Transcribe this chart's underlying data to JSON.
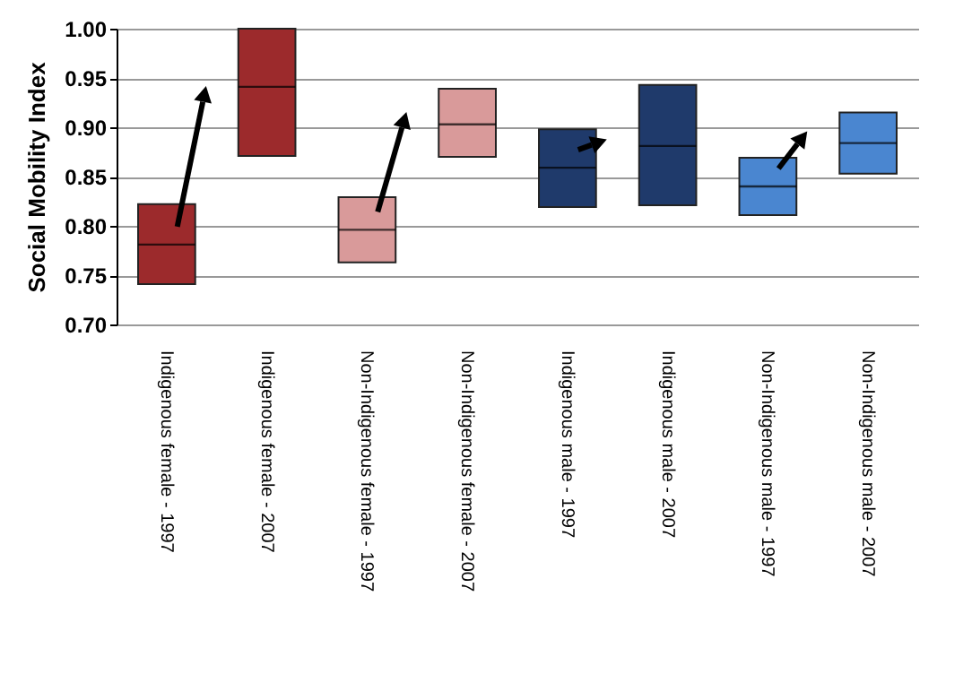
{
  "chart_data": {
    "type": "box",
    "ylabel": "Social Mobility Index",
    "categories": [
      "Indigenous female - 1997",
      "Indigenous female - 2007",
      "Non-Indigenous female - 1997",
      "Non-Indigenous female - 2007",
      "Indigenous male - 1997",
      "Indigenous male - 2007",
      "Non-Indigenous male - 1997",
      "Non-Indigenous male - 2007"
    ],
    "colors": [
      "#9c2a2c",
      "#9c2a2c",
      "#d99a9a",
      "#d99a9a",
      "#1f3a6b",
      "#1f3a6b",
      "#4a86d0",
      "#4a86d0"
    ],
    "boxes": [
      {
        "low": 0.741,
        "q1": 0.741,
        "median": 0.781,
        "q3": 0.822,
        "high": 0.822
      },
      {
        "low": 0.871,
        "q1": 0.871,
        "median": 0.941,
        "q3": 1.0,
        "high": 1.0
      },
      {
        "low": 0.763,
        "q1": 0.763,
        "median": 0.796,
        "q3": 0.829,
        "high": 0.829
      },
      {
        "low": 0.87,
        "q1": 0.87,
        "median": 0.903,
        "q3": 0.939,
        "high": 0.939
      },
      {
        "low": 0.819,
        "q1": 0.819,
        "median": 0.859,
        "q3": 0.898,
        "high": 0.898
      },
      {
        "low": 0.821,
        "q1": 0.821,
        "median": 0.881,
        "q3": 0.943,
        "high": 0.943
      },
      {
        "low": 0.811,
        "q1": 0.811,
        "median": 0.84,
        "q3": 0.869,
        "high": 0.869
      },
      {
        "low": 0.853,
        "q1": 0.853,
        "median": 0.884,
        "q3": 0.915,
        "high": 0.915
      }
    ],
    "ylim": [
      0.7,
      1.0
    ],
    "yticks": [
      {
        "value": 0.7,
        "label": "0.70"
      },
      {
        "value": 0.75,
        "label": "0.75"
      },
      {
        "value": 0.8,
        "label": "0.80"
      },
      {
        "value": 0.85,
        "label": "0.85"
      },
      {
        "value": 0.9,
        "label": "0.90"
      },
      {
        "value": 0.95,
        "label": "0.95"
      },
      {
        "value": 1.0,
        "label": "1.00"
      }
    ],
    "grid": "y"
  }
}
